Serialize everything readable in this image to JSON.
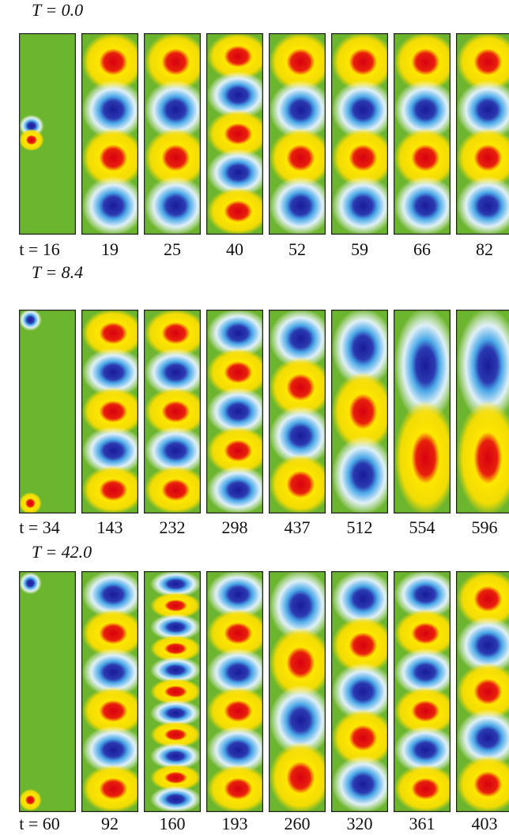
{
  "rows": [
    {
      "title": "T = 0.0",
      "time_labels": [
        "t = 16",
        "19",
        "25",
        "40",
        "52",
        "59",
        "66",
        "82"
      ]
    },
    {
      "title": "T = 8.4",
      "time_labels": [
        "t = 34",
        "143",
        "232",
        "298",
        "437",
        "512",
        "554",
        "596"
      ]
    },
    {
      "title": "T = 42.0",
      "time_labels": [
        "t = 60",
        "92",
        "160",
        "193",
        "260",
        "320",
        "361",
        "403"
      ]
    }
  ]
}
